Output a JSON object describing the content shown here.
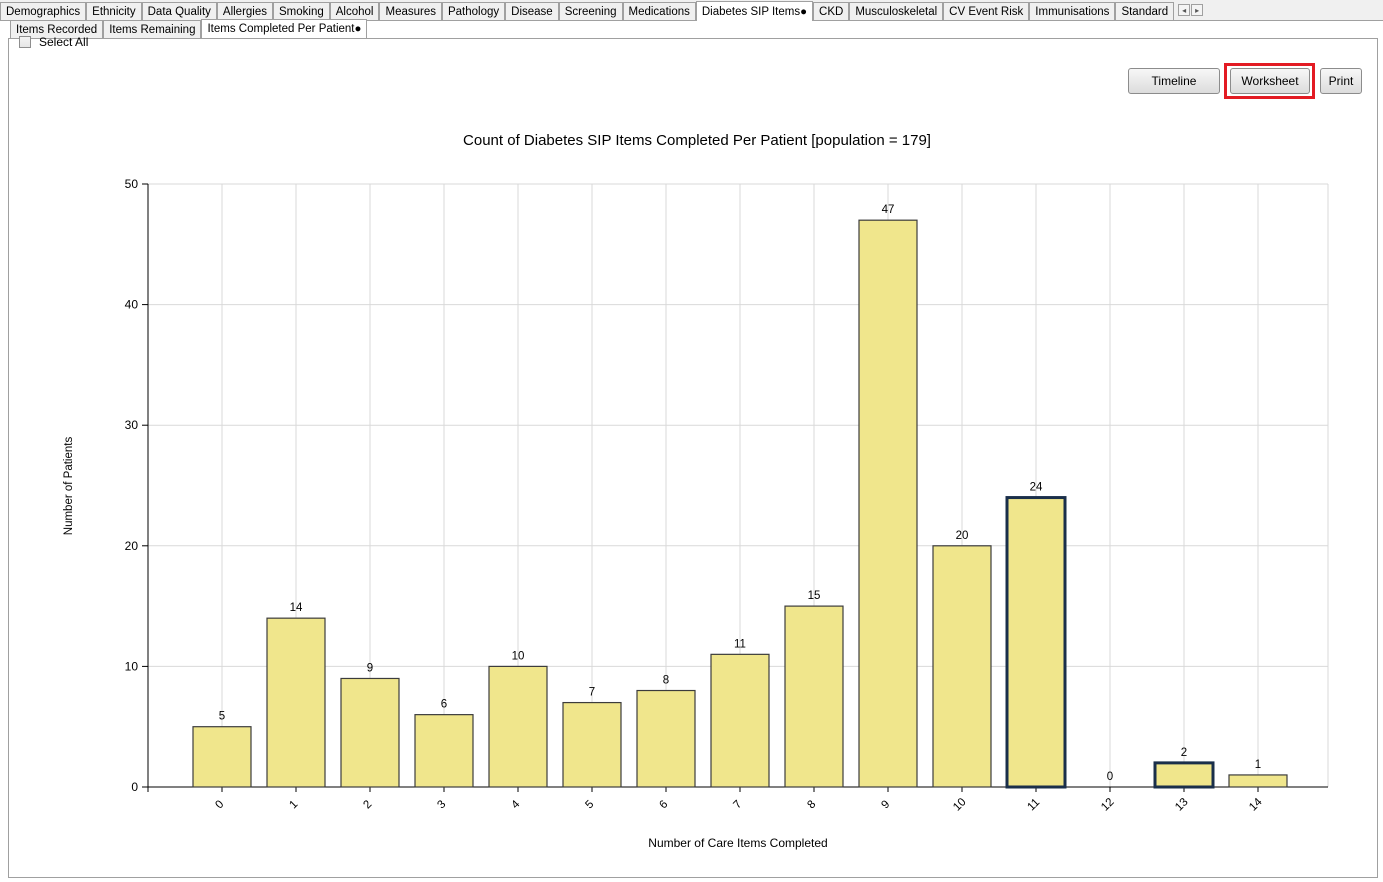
{
  "top_tabs": [
    {
      "label": "Demographics",
      "active": false
    },
    {
      "label": "Ethnicity",
      "active": false
    },
    {
      "label": "Data Quality",
      "active": false
    },
    {
      "label": "Allergies",
      "active": false
    },
    {
      "label": "Smoking",
      "active": false
    },
    {
      "label": "Alcohol",
      "active": false
    },
    {
      "label": "Measures",
      "active": false
    },
    {
      "label": "Pathology",
      "active": false
    },
    {
      "label": "Disease",
      "active": false
    },
    {
      "label": "Screening",
      "active": false
    },
    {
      "label": "Medications",
      "active": false
    },
    {
      "label": "Diabetes SIP Items●",
      "active": true
    },
    {
      "label": "CKD",
      "active": false
    },
    {
      "label": "Musculoskeletal",
      "active": false
    },
    {
      "label": "CV Event Risk",
      "active": false
    },
    {
      "label": "Immunisations",
      "active": false
    },
    {
      "label": "Standard",
      "active": false
    }
  ],
  "tab_scroll": {
    "left": "◂",
    "right": "▸"
  },
  "sub_tabs": [
    {
      "label": "Items Recorded",
      "active": false
    },
    {
      "label": "Items Remaining",
      "active": false
    },
    {
      "label": "Items Completed Per Patient●",
      "active": true
    }
  ],
  "controls": {
    "select_all_label": "Select All",
    "select_all_checked": false,
    "timeline_label": "Timeline",
    "worksheet_label": "Worksheet",
    "print_label": "Print",
    "highlight_color": "#e31b23"
  },
  "chart_data": {
    "type": "bar",
    "title": "Count of Diabetes SIP Items Completed Per Patient [population = 179]",
    "xlabel": "Number of Care Items Completed",
    "ylabel": "Number of Patients",
    "categories": [
      "0",
      "1",
      "2",
      "3",
      "4",
      "5",
      "6",
      "7",
      "8",
      "9",
      "10",
      "11",
      "12",
      "13",
      "14"
    ],
    "values": [
      5,
      14,
      9,
      6,
      10,
      7,
      8,
      11,
      15,
      47,
      20,
      24,
      0,
      2,
      1
    ],
    "selected": [
      11,
      13
    ],
    "ylim": [
      0,
      50
    ],
    "yticks": [
      0,
      10,
      20,
      30,
      40,
      50
    ],
    "grid": true,
    "bar_color": "#f0e68c",
    "bar_edge_color": "#3c3c3c",
    "selected_edge_color": "#1a2f4a"
  }
}
